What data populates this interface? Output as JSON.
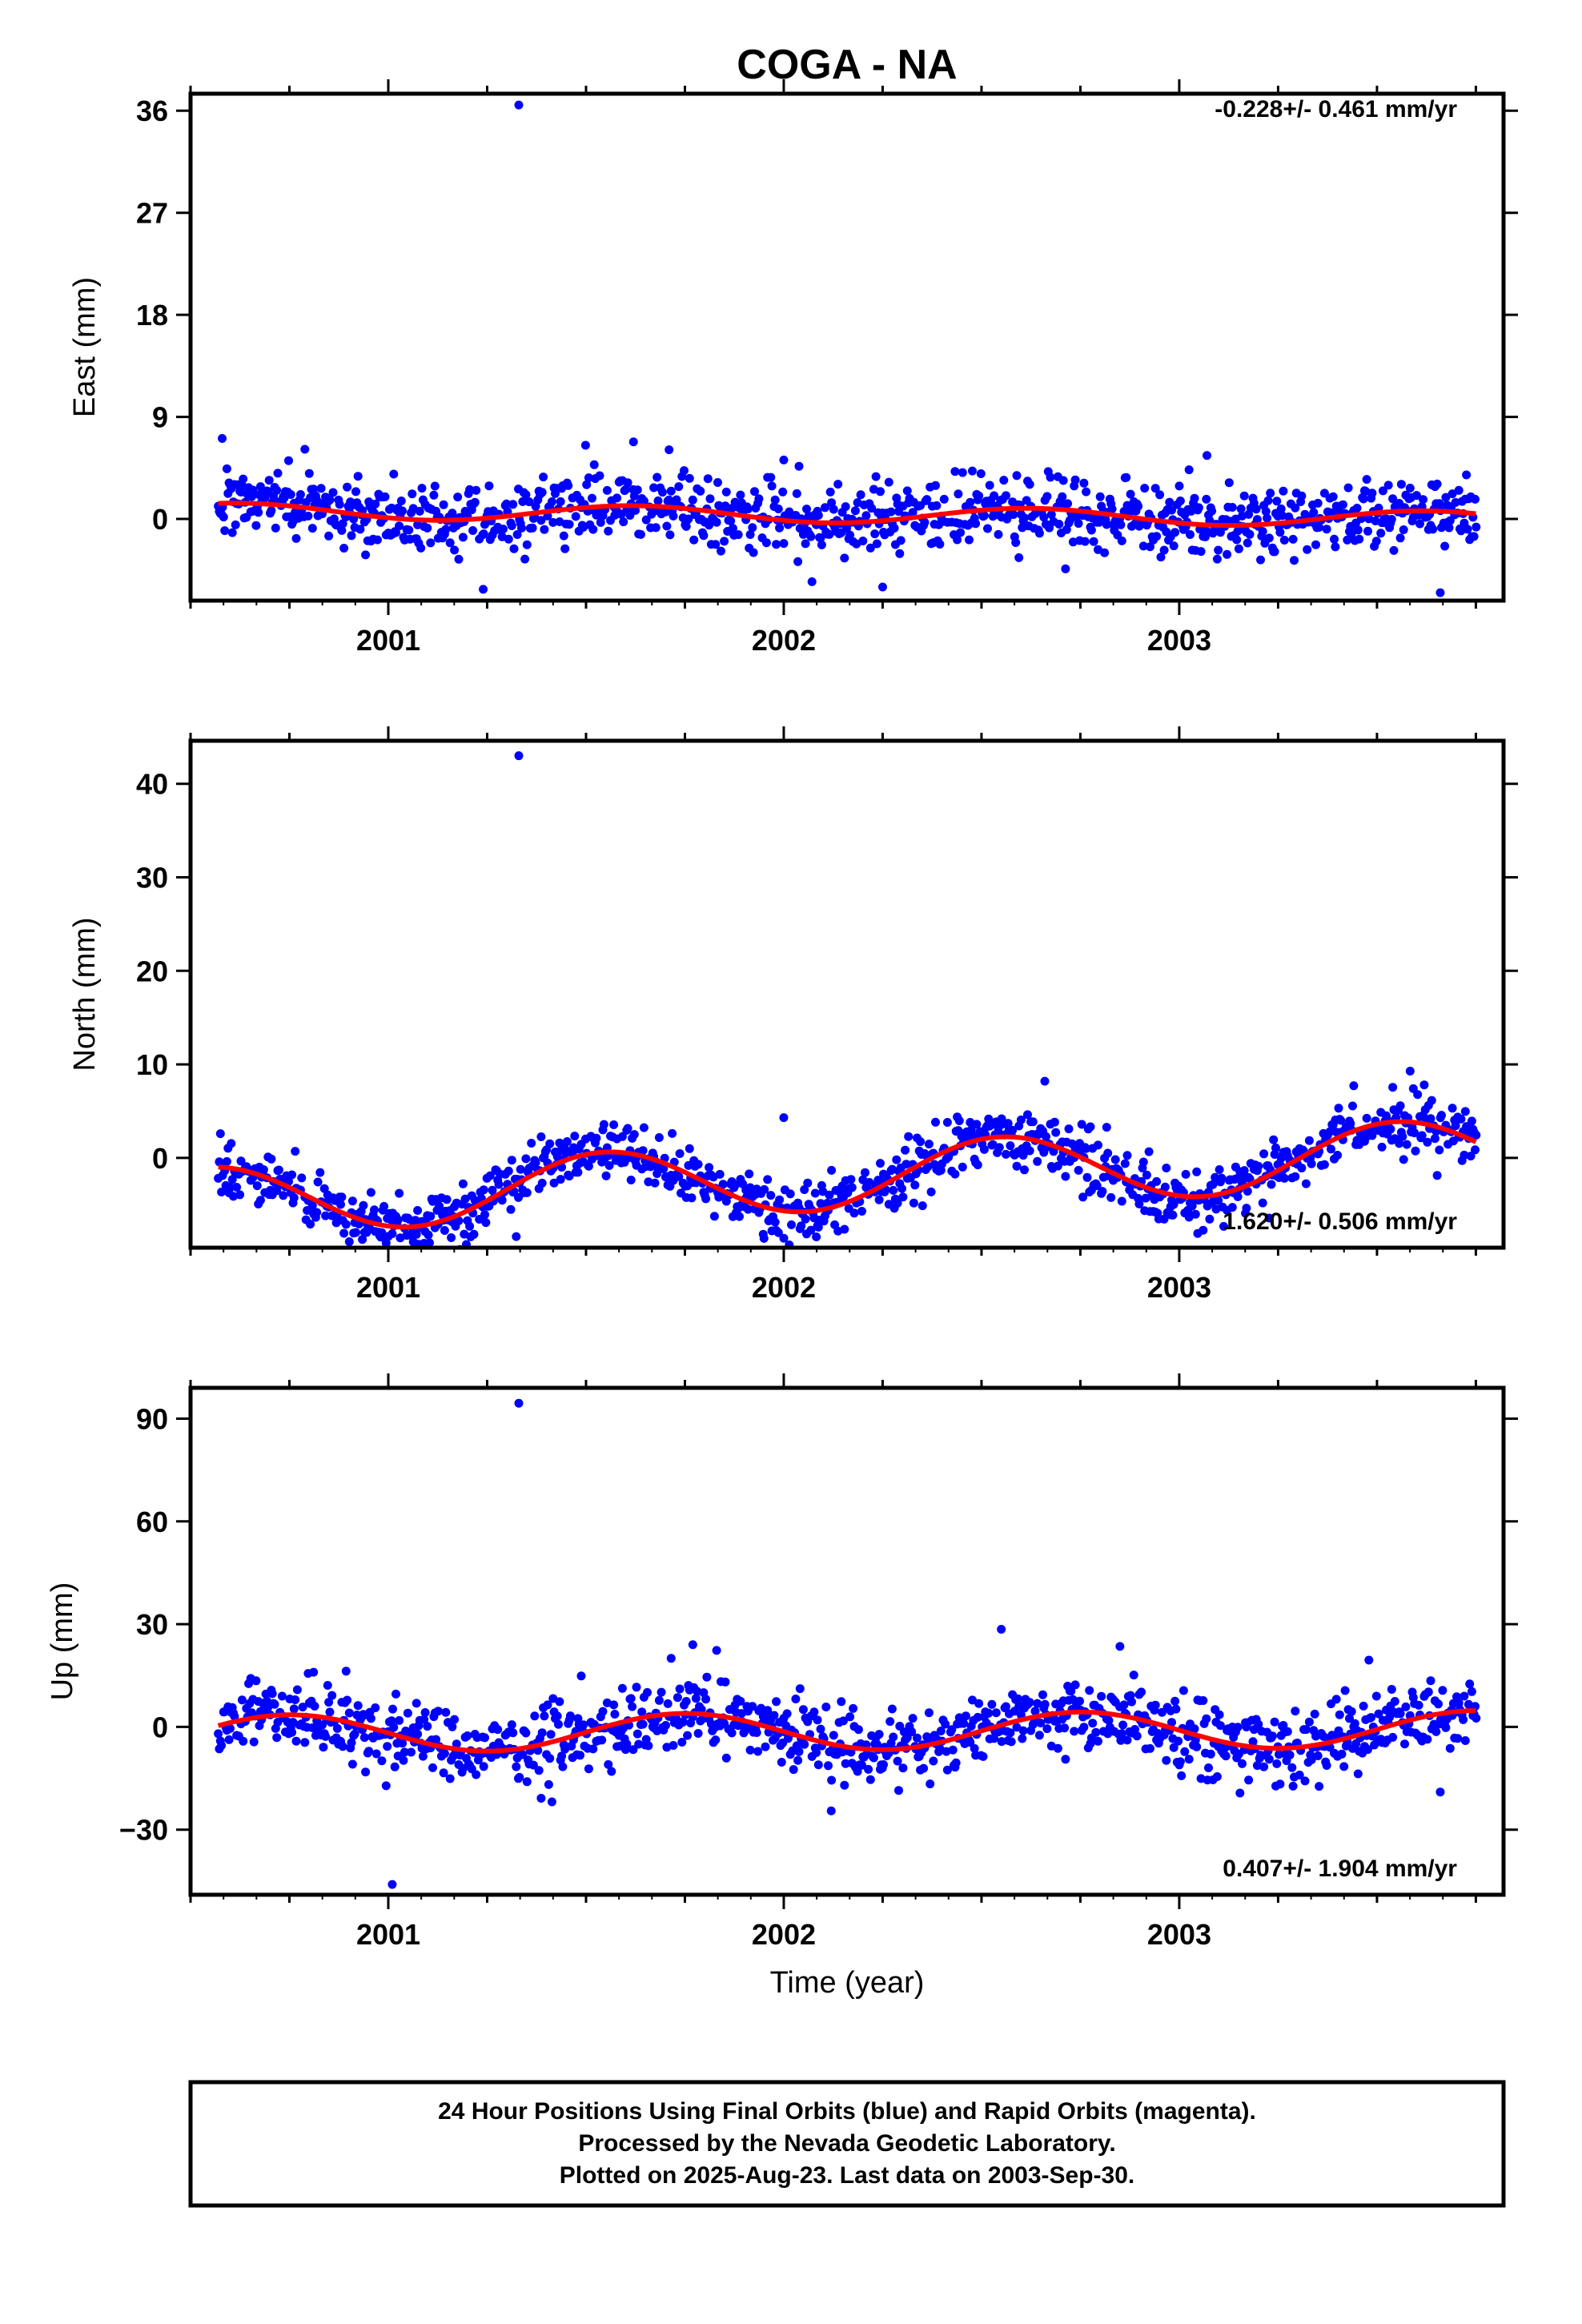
{
  "title": "COGA - NA",
  "colors": {
    "final_orbits": "#0000ff",
    "model_fit": "#ff0000",
    "frame": "#000000"
  },
  "xlabel": "Time (year)",
  "footer": [
    "24 Hour Positions Using Final Orbits (blue) and Rapid Orbits (magenta).",
    "Processed by the Nevada Geodetic Laboratory.",
    "Plotted on 2025-Aug-23. Last data on 2003-Sep-30."
  ],
  "chart_data": [
    {
      "type": "scatter",
      "ylabel": "East (mm)",
      "rate_label": "-0.228+/- 0.461 mm/yr",
      "xlim": [
        2000.5,
        2003.82
      ],
      "ylim": [
        -7.2,
        37.5
      ],
      "yticks": [
        "36",
        "27",
        "18",
        "9",
        "0"
      ],
      "ytick_values": [
        36,
        27,
        18,
        9,
        0
      ],
      "xticks": [
        "2001",
        "2002",
        "2003"
      ],
      "xtick_values": [
        2001,
        2002,
        2003
      ],
      "data_start": 2000.57,
      "data_end": 2003.75,
      "seasonal_model": {
        "offset": 0.35,
        "trend_mm_per_yr": -0.228,
        "amplitude": 0.7,
        "phase_year": 0.62
      },
      "scatter_sigma": 1.5,
      "outliers": [
        {
          "x": 2001.33,
          "y": 36.5
        },
        {
          "x": 2003.66,
          "y": -6.5
        },
        {
          "x": 2001.24,
          "y": -6.2
        },
        {
          "x": 2002.25,
          "y": -6.0
        },
        {
          "x": 2001.62,
          "y": 6.8
        },
        {
          "x": 2001.71,
          "y": 6.1
        },
        {
          "x": 2002.0,
          "y": 5.2
        },
        {
          "x": 2003.07,
          "y": 5.6
        },
        {
          "x": 2000.58,
          "y": 7.1
        }
      ]
    },
    {
      "type": "scatter",
      "ylabel": "North (mm)",
      "rate_label": "1.620+/- 0.506 mm/yr",
      "xlim": [
        2000.5,
        2003.82
      ],
      "ylim": [
        -9.6,
        44.6
      ],
      "yticks": [
        "40",
        "30",
        "20",
        "10",
        "0"
      ],
      "ytick_values": [
        40,
        30,
        20,
        10,
        0
      ],
      "xticks": [
        "2001",
        "2002",
        "2003"
      ],
      "xtick_values": [
        2001,
        2002,
        2003
      ],
      "data_start": 2000.57,
      "data_end": 2003.75,
      "seasonal_model": {
        "offset": -2.0,
        "trend_mm_per_yr": 1.62,
        "amplitude": 3.6,
        "phase_year": 0.55
      },
      "scatter_sigma": 1.6,
      "outliers": [
        {
          "x": 2001.33,
          "y": 43.0
        },
        {
          "x": 2002.0,
          "y": 4.3
        },
        {
          "x": 2002.66,
          "y": 8.2
        },
        {
          "x": 2002.98,
          "y": -6.1
        },
        {
          "x": 2001.95,
          "y": -8.6
        },
        {
          "x": 2001.01,
          "y": -8.1
        }
      ]
    },
    {
      "type": "scatter",
      "ylabel": "Up (mm)",
      "rate_label": "0.407+/- 1.904 mm/yr",
      "xlim": [
        2000.5,
        2003.82
      ],
      "ylim": [
        -49.0,
        99.0
      ],
      "yticks": [
        "90",
        "60",
        "30",
        "0",
        "−30"
      ],
      "ytick_values": [
        90,
        60,
        30,
        0,
        -30
      ],
      "xticks": [
        "2001",
        "2002",
        "2003"
      ],
      "xtick_values": [
        2001,
        2002,
        2003
      ],
      "data_start": 2000.57,
      "data_end": 2003.75,
      "seasonal_model": {
        "offset": -1.3,
        "trend_mm_per_yr": 0.407,
        "amplitude": 5.4,
        "phase_year": 0.75
      },
      "scatter_sigma": 5.2,
      "outliers": [
        {
          "x": 2001.33,
          "y": 94.5
        },
        {
          "x": 2001.01,
          "y": -46.0
        },
        {
          "x": 2002.55,
          "y": 28.5
        },
        {
          "x": 2001.77,
          "y": 24.0
        },
        {
          "x": 2002.85,
          "y": 23.5
        },
        {
          "x": 2002.12,
          "y": -24.5
        },
        {
          "x": 2003.66,
          "y": -19.0
        }
      ]
    }
  ]
}
